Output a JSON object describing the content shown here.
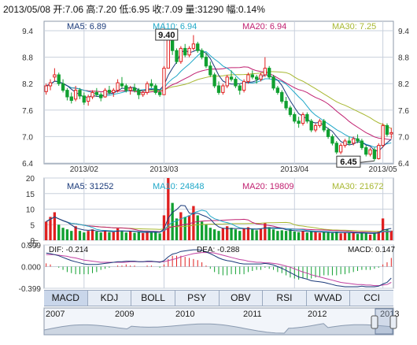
{
  "header": "2013/05/08 开:7.06 高:7.20 低:6.95 收:7.09 量:31290 幅:0.14%",
  "colors": {
    "up": "#e02020",
    "down": "#10a030",
    "ma5": "#1a3a7a",
    "ma10": "#20a8c8",
    "ma20": "#c02070",
    "ma30": "#a8b832",
    "dif": "#1a3a7a",
    "dea": "#c040a0",
    "grid": "#c8d0dc",
    "axis": "#8c98a8",
    "label": "#333333"
  },
  "chart_data": [
    {
      "type": "candlestick",
      "title": "2013/05/08 开:7.06 高:7.20 低:6.95 收:7.09 量:31290 幅:0.14%",
      "ylim": [
        6.4,
        9.4
      ],
      "yticks": [
        "9.4",
        "8.8",
        "8.2",
        "7.6",
        "7.0",
        "6.4"
      ],
      "xticks": [
        "2013/02",
        "2013/03",
        "2013/04",
        "2013/05"
      ],
      "legend": [
        {
          "label": "MA5: 6.89",
          "color": "#1a3a7a"
        },
        {
          "label": "MA10: 6.94",
          "color": "#20a8c8"
        },
        {
          "label": "MA20: 6.94",
          "color": "#c02070"
        },
        {
          "label": "MA30: 7.25",
          "color": "#a8b832"
        }
      ],
      "annotations": [
        {
          "text": "9.40",
          "type": "high"
        },
        {
          "text": "6.45",
          "type": "low"
        }
      ],
      "candles": [
        [
          8.02,
          8.2,
          7.95,
          8.15
        ],
        [
          8.15,
          8.3,
          8.05,
          8.22
        ],
        [
          8.35,
          8.55,
          8.25,
          8.4
        ],
        [
          8.4,
          8.45,
          8.15,
          8.2
        ],
        [
          8.2,
          8.3,
          8.0,
          8.05
        ],
        [
          8.05,
          8.1,
          7.82,
          7.9
        ],
        [
          7.9,
          8.0,
          7.75,
          7.82
        ],
        [
          7.85,
          8.15,
          7.8,
          8.05
        ],
        [
          8.05,
          8.1,
          7.85,
          7.92
        ],
        [
          7.92,
          8.0,
          7.72,
          7.78
        ],
        [
          7.8,
          7.95,
          7.7,
          7.9
        ],
        [
          7.9,
          8.05,
          7.85,
          8.0
        ],
        [
          8.0,
          8.1,
          7.9,
          7.95
        ],
        [
          7.95,
          8.0,
          7.8,
          7.88
        ],
        [
          7.9,
          8.1,
          7.88,
          8.05
        ],
        [
          8.05,
          8.15,
          7.95,
          8.0
        ],
        [
          8.0,
          8.1,
          7.9,
          8.05
        ],
        [
          8.05,
          8.3,
          8.0,
          8.22
        ],
        [
          8.2,
          8.35,
          8.1,
          8.15
        ],
        [
          8.15,
          8.2,
          8.0,
          8.05
        ],
        [
          8.05,
          8.15,
          7.95,
          8.1
        ],
        [
          8.1,
          8.2,
          8.0,
          8.05
        ],
        [
          8.05,
          8.1,
          7.85,
          7.95
        ],
        [
          7.95,
          8.05,
          7.9,
          8.0
        ],
        [
          8.0,
          8.25,
          7.95,
          8.2
        ],
        [
          8.2,
          8.3,
          8.1,
          8.15
        ],
        [
          8.15,
          8.2,
          7.95,
          8.0
        ],
        [
          8.0,
          8.05,
          7.9,
          7.95
        ],
        [
          7.95,
          8.6,
          7.95,
          8.55
        ],
        [
          8.55,
          9.4,
          8.55,
          9.3
        ],
        [
          9.3,
          9.35,
          8.85,
          8.95
        ],
        [
          8.95,
          9.0,
          8.65,
          8.7
        ],
        [
          8.7,
          9.05,
          8.65,
          9.0
        ],
        [
          9.0,
          9.1,
          8.8,
          8.85
        ],
        [
          8.85,
          9.05,
          8.8,
          9.0
        ],
        [
          9.0,
          9.3,
          8.95,
          9.1
        ],
        [
          9.1,
          9.15,
          8.9,
          8.95
        ],
        [
          8.95,
          9.0,
          8.75,
          8.8
        ],
        [
          8.8,
          8.9,
          8.55,
          8.6
        ],
        [
          8.6,
          8.7,
          8.35,
          8.4
        ],
        [
          8.4,
          8.45,
          8.1,
          8.15
        ],
        [
          8.15,
          8.25,
          7.95,
          8.0
        ],
        [
          8.0,
          8.2,
          7.95,
          8.15
        ],
        [
          8.15,
          8.4,
          8.1,
          8.35
        ],
        [
          8.35,
          8.5,
          8.25,
          8.3
        ],
        [
          8.3,
          8.35,
          8.1,
          8.15
        ],
        [
          8.15,
          8.2,
          7.95,
          8.05
        ],
        [
          8.05,
          8.3,
          8.0,
          8.25
        ],
        [
          8.25,
          8.45,
          8.2,
          8.4
        ],
        [
          8.4,
          8.5,
          8.3,
          8.35
        ],
        [
          8.35,
          8.4,
          8.2,
          8.3
        ],
        [
          8.3,
          8.45,
          8.25,
          8.4
        ],
        [
          8.4,
          8.8,
          8.35,
          8.55
        ],
        [
          8.55,
          8.6,
          8.3,
          8.35
        ],
        [
          8.35,
          8.4,
          8.05,
          8.1
        ],
        [
          8.1,
          8.15,
          7.95,
          8.0
        ],
        [
          8.0,
          8.05,
          7.75,
          7.8
        ],
        [
          7.8,
          7.9,
          7.6,
          7.65
        ],
        [
          7.65,
          7.7,
          7.45,
          7.5
        ],
        [
          7.5,
          7.55,
          7.3,
          7.35
        ],
        [
          7.35,
          7.45,
          7.2,
          7.3
        ],
        [
          7.3,
          7.55,
          7.25,
          7.5
        ],
        [
          7.5,
          7.55,
          7.3,
          7.35
        ],
        [
          7.35,
          7.4,
          7.1,
          7.15
        ],
        [
          7.15,
          7.3,
          7.1,
          7.25
        ],
        [
          7.25,
          7.4,
          7.2,
          7.35
        ],
        [
          7.35,
          7.4,
          7.1,
          7.15
        ],
        [
          7.15,
          7.2,
          6.95,
          7.0
        ],
        [
          7.0,
          7.05,
          6.8,
          6.85
        ],
        [
          6.85,
          6.9,
          6.6,
          6.65
        ],
        [
          6.65,
          6.85,
          6.6,
          6.8
        ],
        [
          6.8,
          6.95,
          6.75,
          6.9
        ],
        [
          6.9,
          7.0,
          6.8,
          6.85
        ],
        [
          6.85,
          7.0,
          6.8,
          6.95
        ],
        [
          6.95,
          7.05,
          6.85,
          6.9
        ],
        [
          6.9,
          6.95,
          6.7,
          6.75
        ],
        [
          6.75,
          6.8,
          6.55,
          6.6
        ],
        [
          6.6,
          6.75,
          6.55,
          6.7
        ],
        [
          6.7,
          6.75,
          6.45,
          6.5
        ],
        [
          6.5,
          6.85,
          6.48,
          6.8
        ],
        [
          6.8,
          7.3,
          6.75,
          7.25
        ],
        [
          7.25,
          7.3,
          7.0,
          7.05
        ],
        [
          7.06,
          7.2,
          6.95,
          7.09
        ]
      ]
    },
    {
      "type": "bar",
      "ylim": [
        0,
        20
      ],
      "yticks": [
        "20",
        "15",
        "10",
        "5",
        "0"
      ],
      "legend": [
        {
          "label": "MA5: 31252",
          "color": "#1a3a7a"
        },
        {
          "label": "MA10: 24848",
          "color": "#20a8c8"
        },
        {
          "label": "MA20: 19809",
          "color": "#c02070"
        },
        {
          "label": "MA30: 21672",
          "color": "#a8b832"
        }
      ],
      "unit_label": "x万",
      "values": [
        6,
        7.5,
        9,
        5,
        4,
        3.5,
        3,
        4.5,
        3,
        2.5,
        3,
        3.5,
        2.8,
        2.5,
        3.2,
        2.6,
        2.6,
        3.8,
        3,
        2.5,
        2.8,
        2.4,
        2.6,
        2.3,
        3,
        2.5,
        2.6,
        2.2,
        8,
        20,
        12,
        7,
        9,
        7.5,
        8,
        11,
        8,
        6,
        5,
        4,
        3.5,
        3,
        3.8,
        4.5,
        4,
        3.5,
        3,
        3.8,
        4.2,
        3.5,
        3.2,
        3.6,
        5.5,
        4.2,
        3.5,
        3,
        3.2,
        3,
        3.5,
        2.8,
        2.6,
        3,
        2.5,
        3,
        2.6,
        2.4,
        2.6,
        2.5,
        2.3,
        2.8,
        2.2,
        2.5,
        2.3,
        2.4,
        2,
        2.5,
        2.2,
        1.8,
        2.6,
        2.8,
        7,
        3.5,
        3.1
      ]
    },
    {
      "type": "line",
      "ylim": [
        -0.399,
        0.399
      ],
      "yticks": [
        "0.399",
        "0.000",
        "-0.399"
      ],
      "legend": [
        {
          "label": "DIF: -0.214",
          "color": "#1a3a7a"
        },
        {
          "label": "DEA: -0.288",
          "color": "#c040a0"
        },
        {
          "label": "MACD: 0.147",
          "color": "#222222"
        }
      ],
      "series": [
        {
          "name": "DIF",
          "values": [
            0.25,
            0.24,
            0.22,
            0.2,
            0.17,
            0.14,
            0.11,
            0.09,
            0.07,
            0.05,
            0.04,
            0.04,
            0.04,
            0.05,
            0.06,
            0.07,
            0.08,
            0.09,
            0.09,
            0.1,
            0.1,
            0.1,
            0.09,
            0.09,
            0.1,
            0.1,
            0.09,
            0.08,
            0.11,
            0.18,
            0.23,
            0.25,
            0.28,
            0.29,
            0.3,
            0.31,
            0.31,
            0.3,
            0.27,
            0.24,
            0.2,
            0.16,
            0.13,
            0.11,
            0.1,
            0.08,
            0.06,
            0.05,
            0.05,
            0.05,
            0.05,
            0.05,
            0.06,
            0.05,
            0.03,
            0.0,
            -0.03,
            -0.07,
            -0.11,
            -0.15,
            -0.19,
            -0.21,
            -0.23,
            -0.26,
            -0.27,
            -0.28,
            -0.29,
            -0.31,
            -0.33,
            -0.35,
            -0.36,
            -0.37,
            -0.37,
            -0.37,
            -0.37,
            -0.36,
            -0.37,
            -0.37,
            -0.37,
            -0.36,
            -0.32,
            -0.29,
            -0.21
          ]
        },
        {
          "name": "DEA",
          "values": [
            0.22,
            0.22,
            0.22,
            0.21,
            0.2,
            0.19,
            0.17,
            0.16,
            0.14,
            0.12,
            0.11,
            0.1,
            0.09,
            0.08,
            0.08,
            0.08,
            0.08,
            0.08,
            0.08,
            0.08,
            0.09,
            0.09,
            0.09,
            0.09,
            0.09,
            0.09,
            0.09,
            0.09,
            0.09,
            0.11,
            0.13,
            0.15,
            0.18,
            0.2,
            0.22,
            0.24,
            0.25,
            0.26,
            0.26,
            0.26,
            0.25,
            0.23,
            0.21,
            0.19,
            0.17,
            0.15,
            0.13,
            0.12,
            0.1,
            0.09,
            0.08,
            0.08,
            0.07,
            0.07,
            0.06,
            0.05,
            0.03,
            0.01,
            -0.01,
            -0.04,
            -0.07,
            -0.1,
            -0.12,
            -0.15,
            -0.17,
            -0.19,
            -0.21,
            -0.23,
            -0.25,
            -0.27,
            -0.29,
            -0.3,
            -0.31,
            -0.32,
            -0.33,
            -0.33,
            -0.34,
            -0.34,
            -0.35,
            -0.35,
            -0.34,
            -0.33,
            -0.29
          ]
        }
      ]
    }
  ],
  "tabs": [
    "MACD",
    "KDJ",
    "BOLL",
    "PSY",
    "OBV",
    "RSI",
    "WVAD",
    "CCI"
  ],
  "active_tab": "MACD",
  "timeline_years": [
    "2007",
    "2009",
    "2010",
    "2011",
    "2012",
    "2013"
  ]
}
